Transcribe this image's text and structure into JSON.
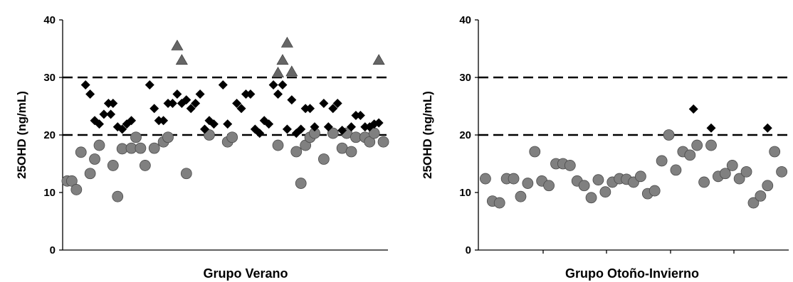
{
  "chart_data": [
    {
      "type": "scatter",
      "xlabel": "Grupo Verano",
      "ylabel": "25OHD (ng/mL)",
      "ylim": [
        0,
        40
      ],
      "yticks": [
        0,
        10,
        20,
        30,
        40
      ],
      "reference_lines": [
        20,
        30
      ],
      "grid": false,
      "series": [
        {
          "marker": "circle",
          "color": "#808080",
          "points": [
            [
              1,
              12
            ],
            [
              2,
              12
            ],
            [
              3,
              10.5
            ],
            [
              4,
              17
            ],
            [
              6,
              13.3
            ],
            [
              7,
              15.8
            ],
            [
              8,
              18.2
            ],
            [
              11,
              14.7
            ],
            [
              12,
              9.3
            ],
            [
              13,
              17.6
            ],
            [
              15,
              17.7
            ],
            [
              16,
              19.6
            ],
            [
              17,
              17.7
            ],
            [
              18,
              14.7
            ],
            [
              20,
              17.7
            ],
            [
              22,
              18.8
            ],
            [
              23,
              19.6
            ],
            [
              27,
              13.3
            ],
            [
              32,
              20
            ],
            [
              36,
              18.8
            ],
            [
              37,
              19.6
            ],
            [
              47,
              18.2
            ],
            [
              51,
              17.1
            ],
            [
              52,
              11.6
            ],
            [
              53,
              18.2
            ],
            [
              54,
              19.6
            ],
            [
              55,
              20.3
            ],
            [
              57,
              15.8
            ],
            [
              59,
              20.3
            ],
            [
              61,
              17.7
            ],
            [
              62,
              20.3
            ],
            [
              63,
              17.1
            ],
            [
              64,
              19.6
            ],
            [
              66,
              19.6
            ],
            [
              67,
              18.8
            ],
            [
              68,
              20.3
            ],
            [
              70,
              18.8
            ]
          ]
        },
        {
          "marker": "diamond",
          "color": "#000000",
          "points": [
            [
              5,
              28.7
            ],
            [
              6,
              27.1
            ],
            [
              7,
              22.5
            ],
            [
              8,
              21.9
            ],
            [
              9,
              23.6
            ],
            [
              10,
              25.5
            ],
            [
              10.5,
              23.6
            ],
            [
              11,
              25.5
            ],
            [
              12,
              21.4
            ],
            [
              13,
              21
            ],
            [
              14,
              21.9
            ],
            [
              15,
              22.5
            ],
            [
              19,
              28.7
            ],
            [
              20,
              24.6
            ],
            [
              21,
              22.5
            ],
            [
              22,
              22.5
            ],
            [
              23,
              25.5
            ],
            [
              24,
              25.5
            ],
            [
              25,
              27.1
            ],
            [
              26,
              25.5
            ],
            [
              27,
              26.1
            ],
            [
              28,
              24.6
            ],
            [
              29,
              25.5
            ],
            [
              30,
              27.1
            ],
            [
              31,
              21
            ],
            [
              32,
              22.5
            ],
            [
              33,
              21.9
            ],
            [
              35,
              28.7
            ],
            [
              36,
              21.9
            ],
            [
              38,
              25.5
            ],
            [
              39,
              24.6
            ],
            [
              40,
              27.1
            ],
            [
              41,
              27.1
            ],
            [
              42,
              21
            ],
            [
              43,
              20.3
            ],
            [
              44,
              22.5
            ],
            [
              45,
              21.9
            ],
            [
              46,
              28.7
            ],
            [
              47,
              27.1
            ],
            [
              48,
              28.7
            ],
            [
              49,
              21
            ],
            [
              50,
              26.1
            ],
            [
              51,
              20.3
            ],
            [
              52,
              21
            ],
            [
              53,
              24.6
            ],
            [
              54,
              24.6
            ],
            [
              55,
              21.4
            ],
            [
              57,
              25.5
            ],
            [
              58,
              21.4
            ],
            [
              59,
              24.6
            ],
            [
              60,
              25.5
            ],
            [
              61,
              20.8
            ],
            [
              63,
              21.4
            ],
            [
              64,
              23.4
            ],
            [
              65,
              23.4
            ],
            [
              66,
              21.4
            ],
            [
              67,
              21.4
            ],
            [
              68,
              21.9
            ],
            [
              69,
              22.1
            ]
          ]
        },
        {
          "marker": "triangle",
          "color": "#666666",
          "points": [
            [
              25,
              35.5
            ],
            [
              26,
              33
            ],
            [
              47,
              30.8
            ],
            [
              48,
              33
            ],
            [
              49,
              36
            ],
            [
              50,
              31
            ],
            [
              69,
              33
            ]
          ]
        }
      ]
    },
    {
      "type": "scatter",
      "xlabel": "Grupo Otoño-Invierno",
      "ylabel": "25OHD (ng/mL)",
      "ylim": [
        0,
        40
      ],
      "yticks": [
        0,
        10,
        20,
        30,
        40
      ],
      "reference_lines": [
        20,
        30
      ],
      "grid": false,
      "series": [
        {
          "marker": "circle",
          "color": "#808080",
          "points": [
            [
              1,
              12.4
            ],
            [
              2,
              8.5
            ],
            [
              3,
              8.2
            ],
            [
              4,
              12.4
            ],
            [
              5,
              12.4
            ],
            [
              6,
              9.3
            ],
            [
              7,
              11.6
            ],
            [
              8,
              17.1
            ],
            [
              9,
              12
            ],
            [
              10,
              11.2
            ],
            [
              11,
              15
            ],
            [
              12,
              15
            ],
            [
              13,
              14.7
            ],
            [
              14,
              12
            ],
            [
              15,
              11.2
            ],
            [
              16,
              9.1
            ],
            [
              17,
              12.2
            ],
            [
              18,
              10.1
            ],
            [
              19,
              11.8
            ],
            [
              20,
              12.4
            ],
            [
              21,
              12.3
            ],
            [
              22,
              11.8
            ],
            [
              23,
              12.8
            ],
            [
              24,
              9.8
            ],
            [
              25,
              10.3
            ],
            [
              26,
              15.5
            ],
            [
              27,
              20
            ],
            [
              28,
              13.9
            ],
            [
              29,
              17.1
            ],
            [
              30,
              16.5
            ],
            [
              31,
              18.2
            ],
            [
              32,
              11.8
            ],
            [
              33,
              18.2
            ],
            [
              34,
              12.8
            ],
            [
              35,
              13.3
            ],
            [
              36,
              14.7
            ],
            [
              37,
              12.4
            ],
            [
              38,
              13.6
            ],
            [
              39,
              8.2
            ],
            [
              40,
              9.4
            ],
            [
              41,
              11.2
            ],
            [
              42,
              17.1
            ],
            [
              43,
              13.6
            ]
          ]
        },
        {
          "marker": "diamond",
          "color": "#000000",
          "points": [
            [
              30.5,
              24.5
            ],
            [
              33,
              21.2
            ],
            [
              41,
              21.2
            ]
          ]
        }
      ]
    }
  ]
}
